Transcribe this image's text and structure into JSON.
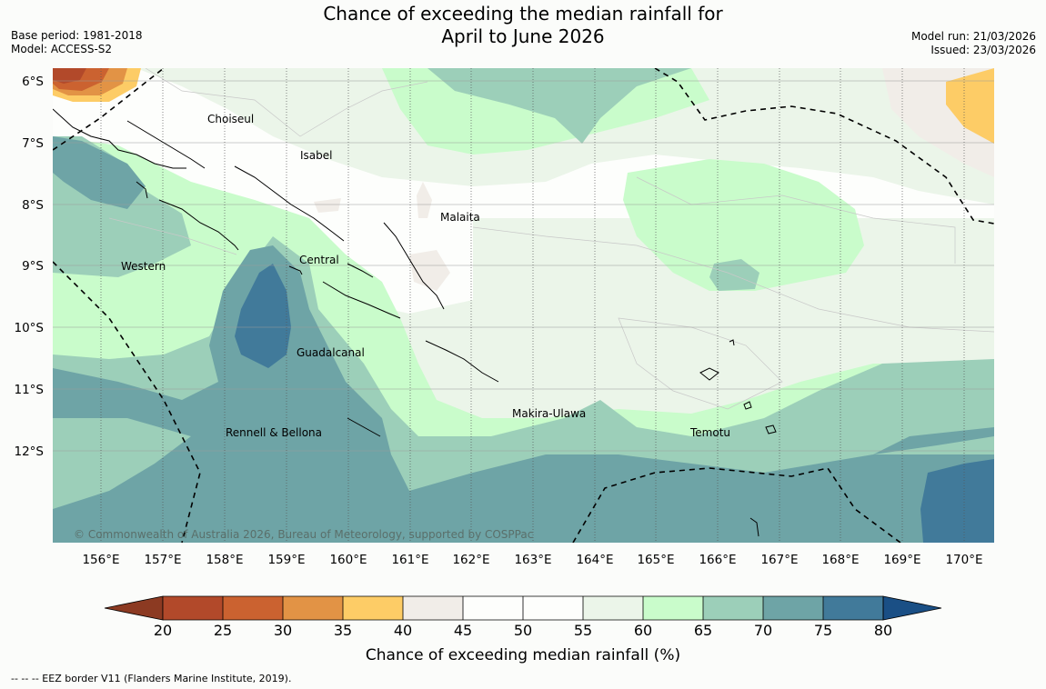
{
  "title": {
    "line1": "Chance of exceeding the median rainfall for",
    "line2": "April to June 2026"
  },
  "meta_left": {
    "base_period": "Base period: 1981-2018",
    "model": "Model: ACCESS-S2"
  },
  "meta_right": {
    "model_run": "Model run: 21/03/2026",
    "issued": "Issued: 23/03/2026"
  },
  "lat_labels": [
    "6°S",
    "7°S",
    "8°S",
    "9°S",
    "10°S",
    "11°S",
    "12°S"
  ],
  "lon_labels": [
    "156°E",
    "157°E",
    "158°E",
    "159°E",
    "160°E",
    "161°E",
    "162°E",
    "163°E",
    "164°E",
    "165°E",
    "166°E",
    "167°E",
    "168°E",
    "169°E",
    "170°E"
  ],
  "regions": [
    {
      "name": "Choiseul"
    },
    {
      "name": "Isabel"
    },
    {
      "name": "Malaita"
    },
    {
      "name": "Western"
    },
    {
      "name": "Central"
    },
    {
      "name": "Guadalcanal"
    },
    {
      "name": "Makira-Ulawa"
    },
    {
      "name": "Rennell & Bellona"
    },
    {
      "name": "Temotu"
    }
  ],
  "copyright": "© Commonwealth of Australia 2026, Bureau of Meteorology, supported by COSPPac",
  "colorbar": {
    "ticks": [
      "20",
      "25",
      "30",
      "35",
      "40",
      "45",
      "50",
      "55",
      "60",
      "65",
      "70",
      "75",
      "80"
    ],
    "label": "Chance of exceeding median rainfall (%)",
    "colors": {
      "below20": "#8c3a22",
      "c20_25": "#b2492a",
      "c25_30": "#cb6230",
      "c30_35": "#e29345",
      "c35_40": "#fdcc66",
      "c40_45": "#f1ede8",
      "c45_50": "#fdfefc",
      "c50_55": "#fdfefc",
      "c55_60": "#ebf5e9",
      "c60_65": "#c9fccb",
      "c65_70": "#9ccfb9",
      "c70_75": "#6ea4a6",
      "c75_80": "#417a9a",
      "above80": "#1a4f85"
    }
  },
  "footer": "-- -- -- EEZ border V11 (Flanders Marine Institute, 2019)."
}
